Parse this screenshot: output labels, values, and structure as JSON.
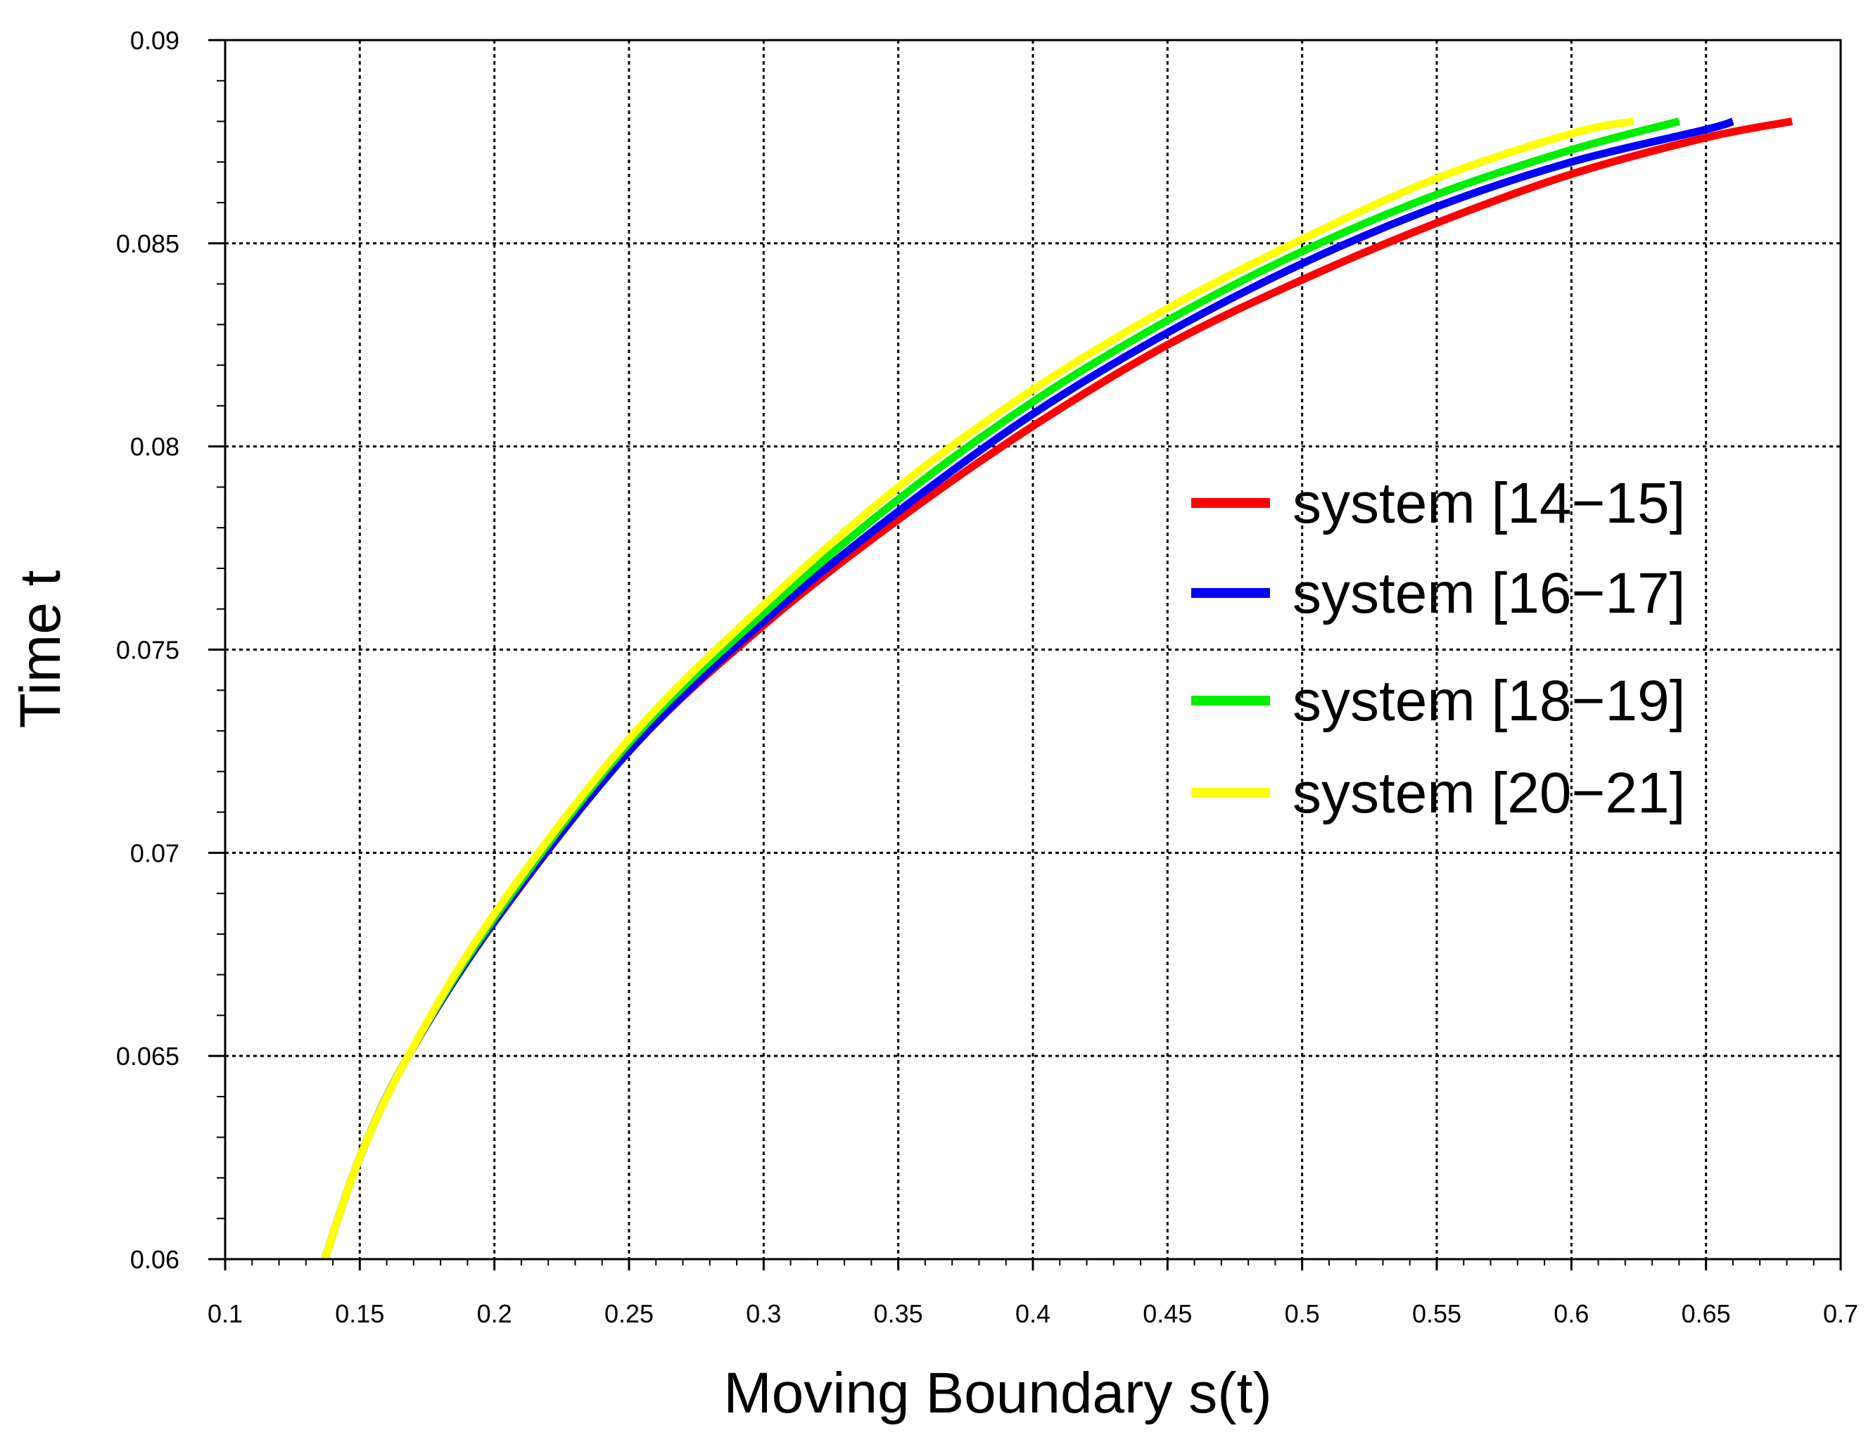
{
  "chart_data": {
    "type": "line",
    "title": "",
    "xlabel": "Moving Boundary s(t)",
    "ylabel": "Time t",
    "xlim": [
      0.1,
      0.7
    ],
    "ylim": [
      0.06,
      0.09
    ],
    "xticks": [
      0.1,
      0.15,
      0.2,
      0.25,
      0.3,
      0.35,
      0.4,
      0.45,
      0.5,
      0.55,
      0.6,
      0.65,
      0.7
    ],
    "xtick_labels": [
      "0.1",
      "0.15",
      "0.2",
      "0.25",
      "0.3",
      "0.35",
      "0.4",
      "0.45",
      "0.5",
      "0.55",
      "0.6",
      "0.65",
      "0.7"
    ],
    "yticks": [
      0.06,
      0.065,
      0.07,
      0.075,
      0.08,
      0.085,
      0.09
    ],
    "ytick_labels": [
      "0.06",
      "0.065",
      "0.07",
      "0.075",
      "0.08",
      "0.085",
      "0.09"
    ],
    "grid": true,
    "legend_position": "center-right",
    "series": [
      {
        "name": "system [14−15]",
        "color": "#ff0000",
        "x": [
          0.137,
          0.15,
          0.168,
          0.2,
          0.25,
          0.3,
          0.35,
          0.4,
          0.45,
          0.5,
          0.55,
          0.6,
          0.65,
          0.682
        ],
        "y": [
          0.06,
          0.0625,
          0.065,
          0.0683,
          0.0725,
          0.0756,
          0.0782,
          0.0805,
          0.0825,
          0.0841,
          0.0855,
          0.0867,
          0.0876,
          0.088
        ]
      },
      {
        "name": "system [16−17]",
        "color": "#0000ff",
        "x": [
          0.137,
          0.15,
          0.168,
          0.2,
          0.25,
          0.3,
          0.35,
          0.4,
          0.45,
          0.5,
          0.55,
          0.6,
          0.65,
          0.66
        ],
        "y": [
          0.06,
          0.0625,
          0.065,
          0.0683,
          0.0725,
          0.0757,
          0.0784,
          0.0808,
          0.0828,
          0.0845,
          0.0859,
          0.087,
          0.0878,
          0.088
        ]
      },
      {
        "name": "system [18−19]",
        "color": "#00ee00",
        "x": [
          0.137,
          0.15,
          0.168,
          0.2,
          0.25,
          0.3,
          0.35,
          0.4,
          0.45,
          0.5,
          0.55,
          0.6,
          0.64
        ],
        "y": [
          0.06,
          0.0625,
          0.065,
          0.0684,
          0.0727,
          0.0759,
          0.0787,
          0.0811,
          0.0831,
          0.0848,
          0.0862,
          0.0873,
          0.088
        ]
      },
      {
        "name": "system [20−21]",
        "color": "#ffff00",
        "x": [
          0.137,
          0.15,
          0.168,
          0.2,
          0.25,
          0.3,
          0.35,
          0.4,
          0.45,
          0.5,
          0.55,
          0.6,
          0.623
        ],
        "y": [
          0.06,
          0.0625,
          0.065,
          0.0685,
          0.0728,
          0.0761,
          0.079,
          0.0814,
          0.0834,
          0.0851,
          0.0866,
          0.0877,
          0.088
        ]
      }
    ]
  }
}
